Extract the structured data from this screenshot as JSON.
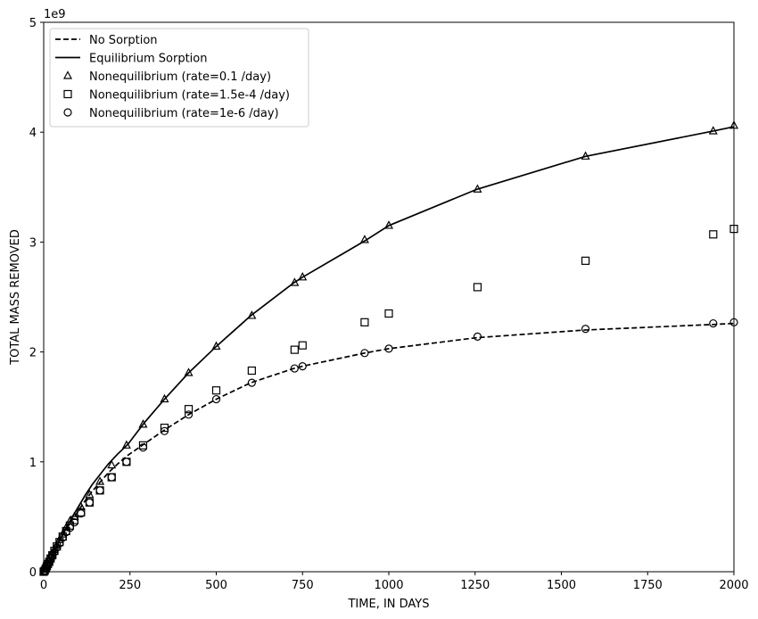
{
  "chart_data": {
    "type": "line",
    "title": "",
    "xlabel": "TIME, IN DAYS",
    "ylabel": "TOTAL MASS REMOVED",
    "y_offset_label": "1e9",
    "xlim": [
      0,
      2000
    ],
    "ylim": [
      0,
      5
    ],
    "y_scale_factor": 1000000000,
    "xticks": [
      0,
      250,
      500,
      750,
      1000,
      1250,
      1500,
      1750,
      2000
    ],
    "xtick_labels": [
      "0",
      "250",
      "500",
      "750",
      "1000",
      "1250",
      "1500",
      "1750",
      "2000"
    ],
    "yticks": [
      0,
      1,
      2,
      3,
      4,
      5
    ],
    "ytick_labels": [
      "0",
      "1",
      "2",
      "3",
      "4",
      "5"
    ],
    "grid": false,
    "legend_position": "top-left",
    "series": [
      {
        "name": "No Sorption",
        "style": "dashed-line",
        "color": "#000000",
        "x": [
          0,
          3,
          6,
          9,
          12,
          16,
          20,
          25,
          31,
          38,
          46,
          55,
          65,
          76,
          89,
          104,
          121,
          140,
          162,
          187,
          214,
          244,
          290,
          350,
          420,
          500,
          600,
          725,
          750,
          930,
          1000,
          1255,
          1570,
          1940,
          2000
        ],
        "y": [
          0,
          0.01,
          0.03,
          0.05,
          0.07,
          0.1,
          0.12,
          0.15,
          0.19,
          0.23,
          0.28,
          0.33,
          0.38,
          0.44,
          0.5,
          0.57,
          0.65,
          0.73,
          0.81,
          0.9,
          0.98,
          1.06,
          1.16,
          1.29,
          1.43,
          1.57,
          1.72,
          1.85,
          1.87,
          1.99,
          2.03,
          2.13,
          2.2,
          2.25,
          2.26
        ]
      },
      {
        "name": "Equilibrium Sorption",
        "style": "solid-line",
        "color": "#000000",
        "x": [
          0,
          3,
          6,
          9,
          12,
          16,
          20,
          25,
          31,
          38,
          46,
          55,
          65,
          76,
          89,
          104,
          121,
          140,
          162,
          187,
          214,
          244,
          290,
          350,
          420,
          500,
          600,
          725,
          750,
          930,
          1000,
          1255,
          1570,
          1940,
          2000
        ],
        "y": [
          0,
          0.01,
          0.03,
          0.05,
          0.07,
          0.1,
          0.13,
          0.16,
          0.2,
          0.24,
          0.29,
          0.34,
          0.4,
          0.46,
          0.53,
          0.61,
          0.7,
          0.79,
          0.88,
          0.98,
          1.07,
          1.16,
          1.35,
          1.57,
          1.81,
          2.05,
          2.33,
          2.63,
          2.68,
          3.01,
          3.15,
          3.48,
          3.78,
          4.01,
          4.05
        ]
      },
      {
        "name": "Nonequilibrium (rate=0.1 /day)",
        "style": "triangle-marker",
        "color": "#000000",
        "x": [
          0,
          3,
          6,
          9,
          12,
          16,
          20,
          25,
          31,
          38,
          46,
          55,
          65,
          76,
          89,
          108,
          133,
          163,
          197,
          240,
          288,
          350,
          420,
          500,
          603,
          727,
          750,
          930,
          1000,
          1257,
          1570,
          1940,
          2000
        ],
        "y": [
          0,
          0.02,
          0.03,
          0.05,
          0.07,
          0.1,
          0.13,
          0.16,
          0.2,
          0.24,
          0.29,
          0.34,
          0.4,
          0.46,
          0.5,
          0.59,
          0.7,
          0.82,
          0.97,
          1.15,
          1.34,
          1.57,
          1.81,
          2.05,
          2.33,
          2.63,
          2.68,
          3.02,
          3.15,
          3.48,
          3.78,
          4.01,
          4.06
        ]
      },
      {
        "name": "Nonequilibrium (rate=1.5e-4 /day)",
        "style": "square-marker",
        "color": "#000000",
        "x": [
          0,
          3,
          6,
          9,
          12,
          16,
          20,
          25,
          31,
          38,
          46,
          55,
          65,
          76,
          89,
          108,
          133,
          163,
          197,
          240,
          288,
          350,
          420,
          500,
          603,
          727,
          750,
          930,
          1000,
          1257,
          1570,
          1940,
          2000
        ],
        "y": [
          0,
          0.01,
          0.03,
          0.05,
          0.07,
          0.09,
          0.12,
          0.15,
          0.19,
          0.23,
          0.27,
          0.32,
          0.37,
          0.42,
          0.47,
          0.54,
          0.63,
          0.74,
          0.86,
          1.0,
          1.15,
          1.31,
          1.48,
          1.65,
          1.83,
          2.02,
          2.06,
          2.27,
          2.35,
          2.59,
          2.83,
          3.07,
          3.12
        ]
      },
      {
        "name": "Nonequilibrium (rate=1e-6 /day)",
        "style": "circle-marker",
        "color": "#000000",
        "x": [
          0,
          3,
          6,
          9,
          12,
          16,
          20,
          25,
          31,
          38,
          46,
          55,
          65,
          76,
          89,
          108,
          133,
          163,
          197,
          240,
          288,
          350,
          420,
          500,
          603,
          727,
          750,
          930,
          1000,
          1257,
          1570,
          1940,
          2000
        ],
        "y": [
          0,
          0.01,
          0.03,
          0.05,
          0.07,
          0.09,
          0.12,
          0.15,
          0.18,
          0.22,
          0.26,
          0.31,
          0.36,
          0.4,
          0.45,
          0.53,
          0.63,
          0.74,
          0.86,
          1.0,
          1.13,
          1.28,
          1.43,
          1.57,
          1.72,
          1.85,
          1.87,
          1.99,
          2.03,
          2.14,
          2.21,
          2.26,
          2.27
        ]
      }
    ]
  }
}
